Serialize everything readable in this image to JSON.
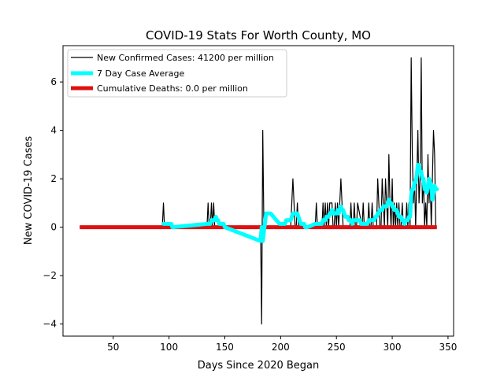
{
  "chart_data": {
    "type": "line",
    "title": "COVID-19 Stats For Worth County, MO",
    "xlabel": "Days Since 2020 Began",
    "ylabel": "New COVID-19 Cases",
    "xlim": [
      5,
      355
    ],
    "ylim": [
      -4.5,
      7.5
    ],
    "x_ticks": [
      50,
      100,
      150,
      200,
      250,
      300,
      350
    ],
    "y_ticks": [
      -4,
      -2,
      0,
      2,
      4,
      6
    ],
    "legend_position": "top-left",
    "grid": false,
    "series": [
      {
        "name": "New Confirmed Cases: 41200 per million",
        "color": "#000000",
        "x": [
          20,
          94,
          95,
          96,
          97,
          134,
          135,
          136,
          137,
          138,
          139,
          140,
          141,
          142,
          143,
          182,
          183,
          184,
          185,
          209,
          210,
          211,
          212,
          213,
          214,
          215,
          216,
          217,
          231,
          232,
          233,
          237,
          238,
          239,
          240,
          241,
          242,
          243,
          244,
          245,
          246,
          247,
          248,
          249,
          250,
          251,
          252,
          253,
          254,
          255,
          256,
          262,
          263,
          264,
          265,
          266,
          267,
          268,
          269,
          273,
          274,
          275,
          276,
          278,
          279,
          280,
          281,
          282,
          283,
          286,
          287,
          288,
          289,
          290,
          291,
          292,
          293,
          294,
          295,
          296,
          297,
          298,
          299,
          300,
          301,
          302,
          303,
          304,
          305,
          306,
          307,
          308,
          309,
          310,
          311,
          312,
          313,
          314,
          315,
          316,
          317,
          318,
          319,
          320,
          321,
          322,
          323,
          324,
          325,
          326,
          327,
          328,
          329,
          330,
          331,
          332,
          333,
          334,
          335,
          336,
          337,
          338,
          339,
          340
        ],
        "y": [
          0,
          0,
          1,
          0,
          0,
          0,
          1,
          0,
          0,
          1,
          0,
          1,
          0,
          0,
          0,
          0,
          -4,
          4,
          0,
          0,
          1,
          2,
          1,
          0,
          0,
          1,
          0,
          0,
          0,
          1,
          0,
          0,
          1,
          0,
          1,
          0,
          1,
          0,
          1,
          1,
          1,
          0,
          0,
          1,
          0,
          1,
          0,
          1,
          2,
          1,
          0,
          0,
          1,
          0,
          0,
          1,
          0,
          0,
          1,
          0,
          1,
          0,
          0,
          0,
          1,
          0,
          0,
          1,
          0,
          0,
          2,
          1,
          0,
          0,
          2,
          1,
          0,
          2,
          1,
          0,
          3,
          1,
          0,
          2,
          0,
          1,
          0,
          1,
          0,
          1,
          0,
          0,
          1,
          0,
          0,
          0,
          1,
          0,
          1,
          0,
          7,
          3,
          1,
          2,
          0,
          2,
          4,
          1,
          2,
          7,
          1,
          2,
          0,
          1,
          0,
          3,
          1,
          2,
          0,
          2,
          4,
          3,
          0,
          0
        ]
      },
      {
        "name": "7 Day Case Average",
        "color": "#00ffff",
        "x": [
          95,
          96,
          97,
          98,
          99,
          100,
          101,
          102,
          103,
          135,
          136,
          137,
          138,
          139,
          140,
          141,
          142,
          143,
          144,
          145,
          146,
          147,
          148,
          149,
          150,
          182,
          183,
          184,
          187,
          188,
          189,
          190,
          191,
          199,
          200,
          201,
          202,
          203,
          204,
          205,
          206,
          207,
          208,
          209,
          210,
          211,
          212,
          213,
          214,
          215,
          216,
          217,
          218,
          219,
          220,
          221,
          222,
          223,
          224,
          231,
          232,
          233,
          234,
          235,
          236,
          237,
          238,
          239,
          240,
          241,
          242,
          243,
          244,
          245,
          246,
          247,
          248,
          249,
          250,
          251,
          252,
          253,
          254,
          255,
          256,
          257,
          258,
          259,
          260,
          261,
          262,
          263,
          264,
          265,
          266,
          267,
          268,
          269,
          270,
          271,
          272,
          273,
          274,
          275,
          276,
          277,
          278,
          279,
          280,
          281,
          282,
          283,
          284,
          285,
          286,
          287,
          288,
          289,
          290,
          291,
          292,
          293,
          294,
          295,
          296,
          297,
          298,
          299,
          300,
          301,
          302,
          303,
          304,
          305,
          306,
          307,
          308,
          309,
          310,
          311,
          312,
          313,
          314,
          315,
          316,
          317,
          318,
          319,
          320,
          321,
          322,
          323,
          324,
          325,
          326,
          327,
          328,
          329,
          330,
          331,
          332,
          333,
          334,
          335,
          336,
          337,
          338,
          339,
          340
        ],
        "y": [
          0.14,
          0.14,
          0.14,
          0.14,
          0.14,
          0.14,
          0.14,
          0.14,
          0.0,
          0.14,
          0.14,
          0.14,
          0.29,
          0.29,
          0.29,
          0.29,
          0.43,
          0.29,
          0.29,
          0.14,
          0.14,
          0.14,
          0.14,
          0.14,
          0.0,
          -0.57,
          0.0,
          -0.57,
          0.57,
          0.57,
          0.57,
          0.57,
          0.57,
          0.14,
          0.14,
          0.14,
          0.14,
          0.14,
          0.14,
          0.29,
          0.29,
          0.29,
          0.29,
          0.29,
          0.43,
          0.57,
          0.57,
          0.57,
          0.57,
          0.57,
          0.43,
          0.29,
          0.14,
          0.14,
          0.14,
          0.14,
          0.0,
          0.0,
          0.0,
          0.14,
          0.14,
          0.14,
          0.14,
          0.14,
          0.14,
          0.14,
          0.29,
          0.29,
          0.29,
          0.43,
          0.43,
          0.43,
          0.57,
          0.57,
          0.71,
          0.57,
          0.57,
          0.57,
          0.57,
          0.71,
          0.57,
          0.71,
          0.86,
          0.71,
          0.71,
          0.57,
          0.43,
          0.43,
          0.43,
          0.29,
          0.29,
          0.29,
          0.14,
          0.29,
          0.29,
          0.29,
          0.29,
          0.29,
          0.29,
          0.29,
          0.14,
          0.14,
          0.14,
          0.14,
          0.14,
          0.14,
          0.14,
          0.29,
          0.29,
          0.29,
          0.29,
          0.29,
          0.29,
          0.43,
          0.43,
          0.57,
          0.57,
          0.71,
          0.71,
          0.71,
          0.86,
          0.86,
          0.86,
          0.86,
          1.0,
          1.14,
          1.0,
          1.0,
          0.86,
          0.86,
          0.71,
          0.71,
          0.71,
          0.57,
          0.43,
          0.43,
          0.43,
          0.29,
          0.29,
          0.14,
          0.29,
          0.29,
          0.29,
          0.43,
          0.43,
          1.29,
          1.57,
          1.57,
          1.86,
          1.86,
          2.14,
          2.57,
          2.57,
          2.29,
          2.29,
          2.0,
          2.0,
          1.57,
          1.57,
          1.43,
          1.71,
          2.0,
          1.86,
          1.71,
          1.14,
          1.43,
          1.71,
          1.57,
          1.57
        ]
      },
      {
        "name": "Cumulative Deaths: 0.0 per million",
        "color": "#dd1111",
        "x": [
          20,
          340
        ],
        "y": [
          0,
          0
        ]
      }
    ]
  }
}
